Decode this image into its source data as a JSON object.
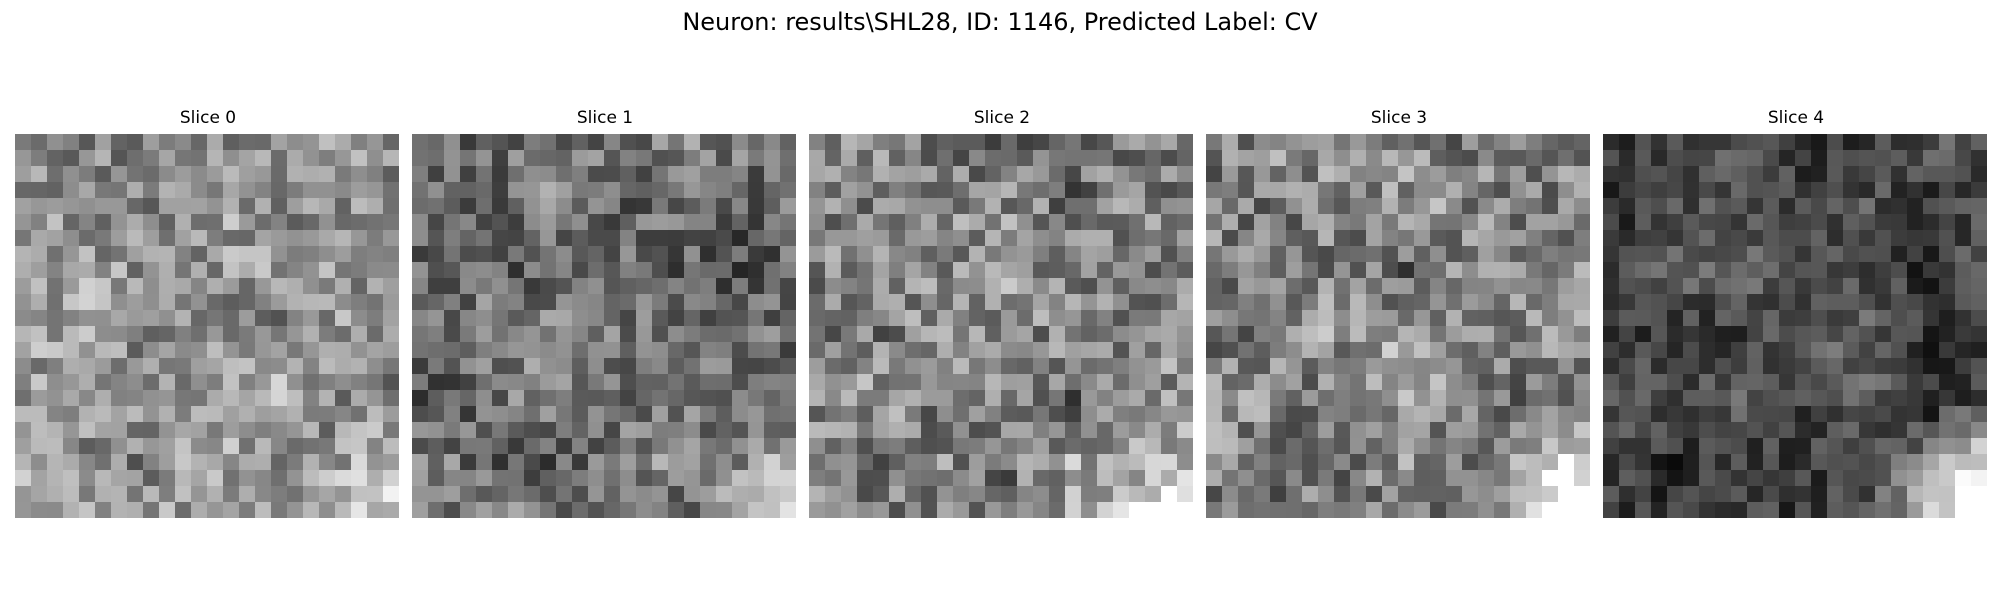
{
  "figure": {
    "title": "Neuron: results\\SHL28, ID: 1146, Predicted Label: CV"
  },
  "colormap": "gray",
  "grid_size": 24,
  "slices": [
    {
      "title": "Slice 0",
      "brightness": 0.58,
      "contrast": 0.2,
      "seed": 11,
      "bright_corner": "bottom-right",
      "corner_strength": 0.25
    },
    {
      "title": "Slice 1",
      "brightness": 0.44,
      "contrast": 0.2,
      "seed": 23,
      "bright_corner": "bottom-right",
      "corner_strength": 0.55
    },
    {
      "title": "Slice 2",
      "brightness": 0.52,
      "contrast": 0.22,
      "seed": 37,
      "bright_corner": "bottom-right",
      "corner_strength": 0.45
    },
    {
      "title": "Slice 3",
      "brightness": 0.5,
      "contrast": 0.22,
      "seed": 51,
      "bright_corner": "bottom-right",
      "corner_strength": 0.75
    },
    {
      "title": "Slice 4",
      "brightness": 0.3,
      "contrast": 0.14,
      "seed": 67,
      "bright_corner": "bottom-right",
      "corner_strength": 0.95
    }
  ]
}
